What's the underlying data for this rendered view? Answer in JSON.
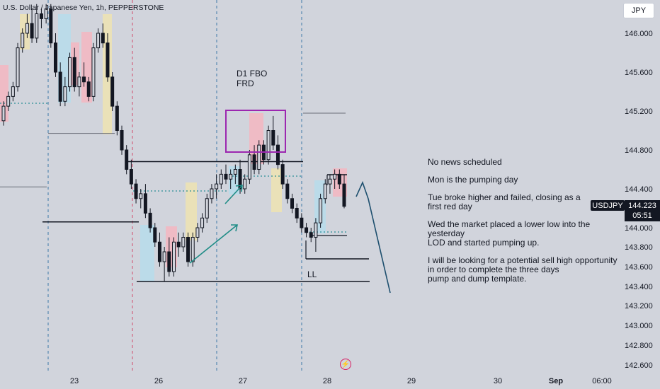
{
  "header": {
    "symbol_title": "U.S. Dollar / Japanese Yen, 1h, PEPPERSTONE",
    "currency": "JPY"
  },
  "price_badge": {
    "symbol": "USDJPY",
    "price": "144.223",
    "countdown": "05:51"
  },
  "colors": {
    "background": "#d1d4dc",
    "candle_body": "#131722",
    "session_pink": "#f2b8c2",
    "session_blue": "#b8dcea",
    "session_yellow": "#ece2b4",
    "fbo_box": "#9c27b0",
    "teal_arrow": "#1e8c86",
    "navy_arrow": "#1d4f6e",
    "dotted_teal": "#2a8e96",
    "day_separator": "#3d78a8",
    "red_separator": "#d14a6a"
  },
  "annotations": {
    "fbo_label_1": "D1 FBO",
    "fbo_label_2": "FRD",
    "ll_label": "LL"
  },
  "notes": [
    "No news scheduled",
    "Mon is the pumping day",
    "Tue broke higher and failed, closing as a",
    "first red day",
    "Wed the market placed a lower low into the yesterday",
    "LOD and started pumping up.",
    "I will be looking for a potential sell high opportunity",
    "in order to complete the three days",
    "pump and dump template."
  ],
  "chart_data": {
    "type": "candlestick",
    "title": "U.S. Dollar / Japanese Yen, 1h, PEPPERSTONE",
    "ylim": [
      142.5,
      146.3
    ],
    "y_ticks": [
      "146.000",
      "145.600",
      "145.200",
      "144.800",
      "144.400",
      "144.000",
      "143.800",
      "143.600",
      "143.400",
      "143.200",
      "143.000",
      "142.800",
      "142.600"
    ],
    "x_ticks": [
      "23",
      "26",
      "27",
      "28",
      "29",
      "30",
      "Sep",
      "06:00"
    ],
    "last_price": 144.223,
    "series": [
      {
        "name": "USDJPY",
        "ohlc": [
          [
            145.1,
            145.3,
            145.05,
            145.25
          ],
          [
            145.25,
            145.4,
            145.2,
            145.35
          ],
          [
            145.35,
            145.5,
            145.3,
            145.45
          ],
          [
            145.45,
            145.9,
            145.4,
            145.85
          ],
          [
            145.85,
            146.05,
            145.8,
            146.0
          ],
          [
            146.0,
            146.2,
            145.95,
            146.1
          ],
          [
            146.1,
            146.25,
            145.9,
            145.95
          ],
          [
            145.95,
            146.3,
            145.9,
            146.2
          ],
          [
            146.2,
            146.25,
            146.05,
            146.15
          ],
          [
            146.15,
            146.3,
            146.1,
            146.25
          ],
          [
            146.25,
            146.3,
            145.85,
            145.9
          ],
          [
            145.9,
            146.0,
            145.55,
            145.6
          ],
          [
            145.6,
            145.7,
            145.25,
            145.3
          ],
          [
            145.3,
            145.55,
            145.25,
            145.45
          ],
          [
            145.45,
            145.8,
            145.4,
            145.75
          ],
          [
            145.75,
            145.85,
            145.4,
            145.45
          ],
          [
            145.45,
            145.6,
            145.35,
            145.55
          ],
          [
            145.55,
            145.7,
            145.45,
            145.5
          ],
          [
            145.5,
            145.55,
            145.3,
            145.35
          ],
          [
            145.35,
            145.9,
            145.3,
            145.85
          ],
          [
            145.85,
            146.05,
            145.8,
            146.0
          ],
          [
            146.0,
            146.1,
            145.85,
            145.9
          ],
          [
            145.9,
            146.0,
            145.5,
            145.55
          ],
          [
            145.55,
            145.6,
            145.2,
            145.25
          ],
          [
            145.25,
            145.3,
            144.95,
            145.0
          ],
          [
            145.0,
            145.05,
            144.75,
            144.8
          ],
          [
            144.8,
            144.85,
            144.55,
            144.6
          ],
          [
            144.6,
            144.7,
            144.4,
            144.45
          ],
          [
            144.45,
            144.5,
            144.25,
            144.3
          ],
          [
            144.3,
            144.4,
            144.2,
            144.35
          ],
          [
            144.35,
            144.45,
            144.1,
            144.15
          ],
          [
            144.15,
            144.2,
            143.95,
            144.0
          ],
          [
            144.0,
            144.05,
            143.8,
            143.85
          ],
          [
            143.85,
            143.95,
            143.6,
            143.65
          ],
          [
            143.65,
            143.8,
            143.45,
            143.75
          ],
          [
            143.75,
            143.9,
            143.5,
            143.55
          ],
          [
            143.55,
            143.9,
            143.5,
            143.85
          ],
          [
            143.85,
            143.95,
            143.7,
            143.8
          ],
          [
            143.8,
            143.95,
            143.75,
            143.9
          ],
          [
            143.9,
            143.95,
            143.6,
            143.65
          ],
          [
            143.65,
            143.95,
            143.6,
            143.9
          ],
          [
            143.9,
            144.05,
            143.85,
            144.0
          ],
          [
            144.0,
            144.15,
            143.95,
            144.1
          ],
          [
            144.1,
            144.35,
            144.05,
            144.3
          ],
          [
            144.3,
            144.45,
            144.25,
            144.4
          ],
          [
            144.4,
            144.55,
            144.3,
            144.45
          ],
          [
            144.45,
            144.6,
            144.4,
            144.55
          ],
          [
            144.55,
            144.65,
            144.45,
            144.5
          ],
          [
            144.5,
            144.6,
            144.4,
            144.55
          ],
          [
            144.55,
            144.65,
            144.45,
            144.6
          ],
          [
            144.6,
            144.7,
            144.35,
            144.4
          ],
          [
            144.4,
            144.55,
            144.35,
            144.5
          ],
          [
            144.5,
            144.8,
            144.45,
            144.75
          ],
          [
            144.75,
            144.85,
            144.55,
            144.6
          ],
          [
            144.6,
            144.9,
            144.55,
            144.85
          ],
          [
            144.85,
            144.9,
            144.65,
            144.7
          ],
          [
            144.7,
            145.05,
            144.65,
            145.0
          ],
          [
            145.0,
            145.15,
            144.8,
            144.85
          ],
          [
            144.85,
            144.95,
            144.6,
            144.65
          ],
          [
            144.65,
            144.7,
            144.4,
            144.45
          ],
          [
            144.45,
            144.5,
            144.25,
            144.3
          ],
          [
            144.3,
            144.35,
            144.15,
            144.2
          ],
          [
            144.2,
            144.25,
            144.05,
            144.1
          ],
          [
            144.1,
            144.15,
            143.95,
            144.0
          ],
          [
            144.0,
            144.05,
            143.9,
            143.95
          ],
          [
            143.95,
            144.0,
            143.85,
            143.9
          ],
          [
            143.9,
            144.1,
            143.75,
            144.05
          ],
          [
            144.05,
            144.35,
            144.0,
            144.3
          ],
          [
            144.3,
            144.5,
            144.25,
            144.45
          ],
          [
            144.45,
            144.55,
            144.35,
            144.5
          ],
          [
            144.5,
            144.6,
            144.4,
            144.55
          ],
          [
            144.55,
            144.6,
            144.4,
            144.45
          ],
          [
            144.45,
            144.55,
            144.2,
            144.22
          ]
        ]
      }
    ],
    "levels": [
      {
        "price": 145.28,
        "style": "dotted"
      },
      {
        "price": 144.97,
        "style": "solid-thin"
      },
      {
        "price": 144.68,
        "style": "solid-thick"
      },
      {
        "price": 144.42,
        "style": "solid-thin"
      },
      {
        "price": 144.06,
        "style": "solid-thick"
      },
      {
        "price": 143.45,
        "style": "solid-thick"
      }
    ]
  }
}
